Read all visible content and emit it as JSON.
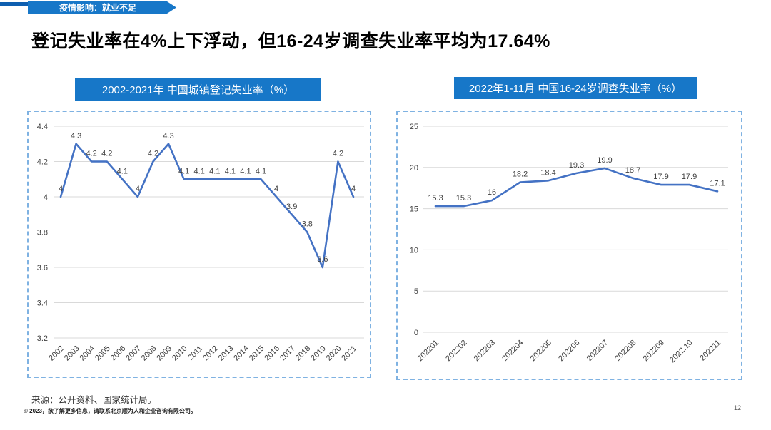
{
  "banner": {
    "label": "疫情影响：就业不足"
  },
  "title": "登记失业率在4%上下浮动，但16-24岁调查失业率平均为17.64%",
  "chart_data": [
    {
      "type": "line",
      "title": "2002-2021年 中国城镇登记失业率（%）",
      "categories": [
        "2002",
        "2003",
        "2004",
        "2005",
        "2006",
        "2007",
        "2008",
        "2009",
        "2010",
        "2011",
        "2012",
        "2013",
        "2014",
        "2015",
        "2016",
        "2017",
        "2018",
        "2019",
        "2020",
        "2021"
      ],
      "values": [
        4,
        4.3,
        4.2,
        4.2,
        4.1,
        4,
        4.2,
        4.3,
        4.1,
        4.1,
        4.1,
        4.1,
        4.1,
        4.1,
        4,
        3.9,
        3.8,
        3.6,
        4.2,
        4
      ],
      "xlabel": "",
      "ylabel": "",
      "ylim": [
        3.2,
        4.4
      ],
      "ytick_step": 0.2,
      "grid": true,
      "legend": "none",
      "line_color": "#4472c4"
    },
    {
      "type": "line",
      "title": "2022年1-11月 中国16-24岁调查失业率（%）",
      "categories": [
        "202201",
        "202202",
        "202203",
        "202204",
        "202205",
        "202206",
        "202207",
        "202208",
        "202209",
        "2022.10",
        "202211"
      ],
      "values": [
        15.3,
        15.3,
        16,
        18.2,
        18.4,
        19.3,
        19.9,
        18.7,
        17.9,
        17.9,
        17.1
      ],
      "xlabel": "",
      "ylabel": "",
      "ylim": [
        0,
        25
      ],
      "ytick_step": 5,
      "grid": true,
      "legend": "none",
      "line_color": "#4472c4"
    }
  ],
  "footer": {
    "source": "来源：公开资料、国家统计局。",
    "copyright": "© 2023，欲了解更多信息，请联系北京顺为人和企业咨询有限公司。",
    "page": "12"
  },
  "colors": {
    "accent_blue": "#1777c8",
    "banner_strip_blue": "#0e5fb0",
    "line_blue": "#4472c4",
    "grid_gray": "#d9d9d9",
    "panel_border_blue": "#7fb2e2",
    "label_gray": "#404040"
  }
}
